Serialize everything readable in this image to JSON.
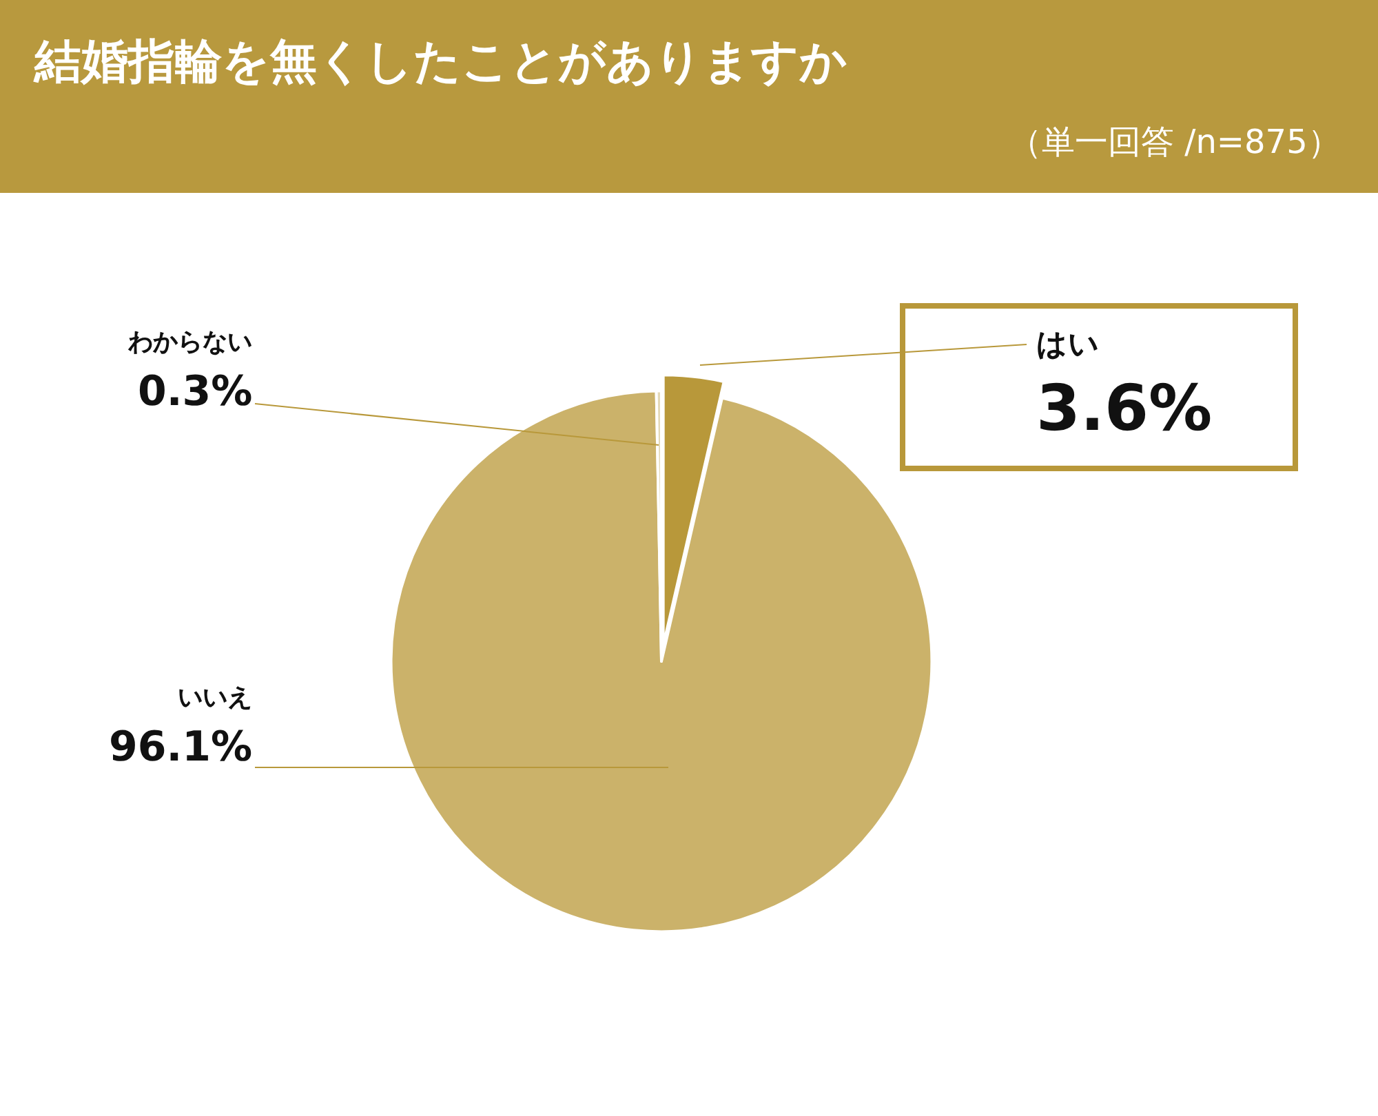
{
  "chart_data": {
    "type": "pie",
    "title": "結婚指輪を無くしたことがありますか",
    "subtitle": "（単一回答 /n=875）",
    "categories": [
      "はい",
      "いいえ",
      "わからない"
    ],
    "values": [
      3.6,
      96.1,
      0.3
    ],
    "value_labels": [
      "3.6%",
      "96.1%",
      "0.3%"
    ],
    "colors": [
      "#b8983a",
      "#cbb26a",
      "#e3d9b8"
    ],
    "legend": false
  }
}
